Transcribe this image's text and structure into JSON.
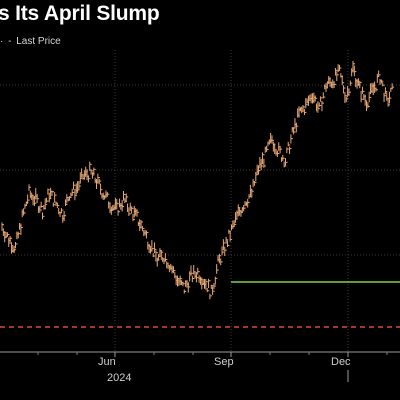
{
  "header": {
    "title": "s Its April Slump",
    "legend_marker": "-",
    "legend_label": "Last Price",
    "legend_prefix": "·"
  },
  "colors": {
    "background": "#000000",
    "grid": "#3a3a3a",
    "price_bars": "#e8a874",
    "support_line": "#7dd34a",
    "threshold_line": "#e0483c",
    "text": "#ffffff"
  },
  "chart_data": {
    "type": "line",
    "style": "ohlc-bars",
    "title": "s Its April Slump",
    "series": [
      {
        "name": "Last Price",
        "x_weeks": [
          0,
          1,
          2,
          3,
          4,
          5,
          6,
          7,
          8,
          9,
          10,
          11,
          12,
          13,
          14,
          15,
          16,
          17,
          18,
          19,
          20,
          21,
          22,
          23,
          24,
          25,
          26,
          27,
          28,
          29,
          30,
          31,
          32,
          33,
          34,
          35,
          36,
          37,
          38,
          39,
          40,
          41,
          42,
          43,
          44,
          45,
          46,
          47,
          48,
          49,
          50,
          51,
          52,
          53,
          54,
          55,
          56,
          57,
          58
        ],
        "values_rel": [
          0.44,
          0.38,
          0.34,
          0.48,
          0.6,
          0.57,
          0.52,
          0.6,
          0.55,
          0.5,
          0.6,
          0.62,
          0.68,
          0.7,
          0.66,
          0.6,
          0.55,
          0.52,
          0.57,
          0.52,
          0.48,
          0.42,
          0.35,
          0.28,
          0.3,
          0.25,
          0.18,
          0.14,
          0.2,
          0.22,
          0.18,
          0.12,
          0.26,
          0.34,
          0.42,
          0.5,
          0.56,
          0.6,
          0.72,
          0.78,
          0.86,
          0.8,
          0.76,
          0.88,
          0.98,
          1.02,
          1.08,
          1.0,
          1.12,
          1.14,
          1.18,
          1.06,
          1.2,
          1.1,
          1.04,
          1.1,
          1.16,
          1.04,
          1.1
        ]
      }
    ],
    "x_tick_labels": [
      "Jun",
      "Sep",
      "Dec"
    ],
    "x_year_label": "2024",
    "support_level_rel": 0.12,
    "threshold_level_rel": -0.06,
    "grid": true,
    "legend": "top-left"
  }
}
